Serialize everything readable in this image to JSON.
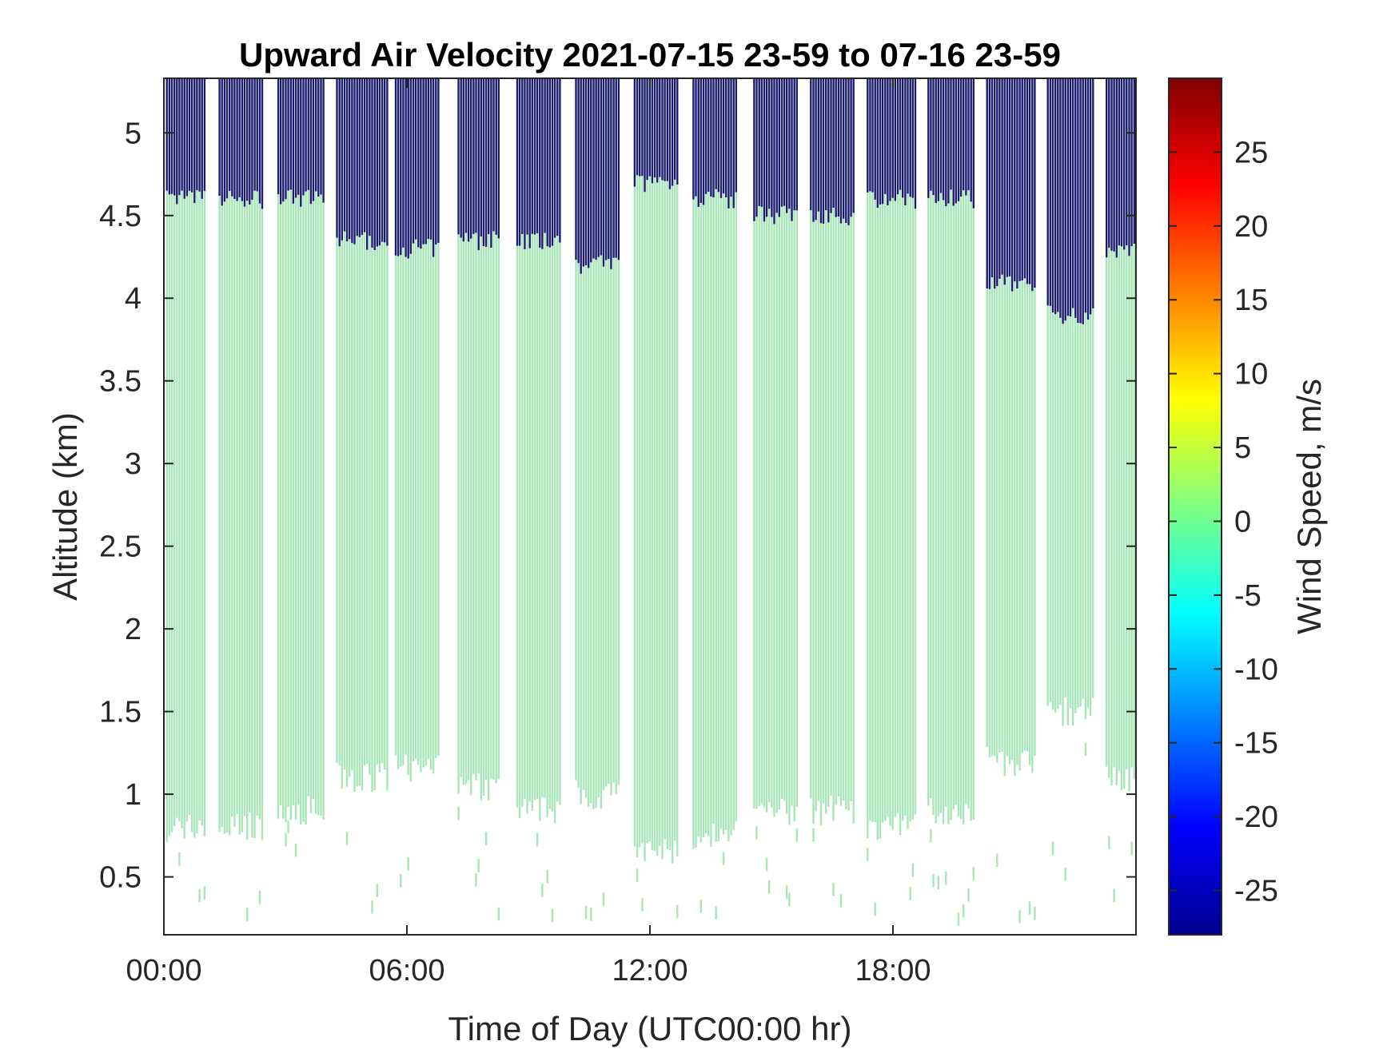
{
  "chart_data": {
    "type": "heatmap",
    "title": "Upward Air Velocity 2021-07-15 23-59 to 07-16 23-59",
    "xlabel": "Time of Day (UTC00:00 hr)",
    "ylabel": "Altitude (km)",
    "colorbar_label": "Wind Speed, m/s",
    "x_unit": "hours",
    "xlim": [
      0,
      24
    ],
    "ylim": [
      0.15,
      5.33
    ],
    "clim": [
      -28,
      30
    ],
    "x_ticks": [
      {
        "value": 0,
        "label": "00:00"
      },
      {
        "value": 6,
        "label": "06:00"
      },
      {
        "value": 12,
        "label": "12:00"
      },
      {
        "value": 18,
        "label": "18:00"
      }
    ],
    "y_ticks": [
      {
        "value": 0.5,
        "label": "0.5"
      },
      {
        "value": 1,
        "label": "1"
      },
      {
        "value": 1.5,
        "label": "1.5"
      },
      {
        "value": 2,
        "label": "2"
      },
      {
        "value": 2.5,
        "label": "2.5"
      },
      {
        "value": 3,
        "label": "3"
      },
      {
        "value": 3.5,
        "label": "3.5"
      },
      {
        "value": 4,
        "label": "4"
      },
      {
        "value": 4.5,
        "label": "4.5"
      },
      {
        "value": 5,
        "label": "5"
      }
    ],
    "c_ticks": [
      {
        "value": -25,
        "label": "-25"
      },
      {
        "value": -20,
        "label": "-20"
      },
      {
        "value": -15,
        "label": "-15"
      },
      {
        "value": -10,
        "label": "-10"
      },
      {
        "value": -5,
        "label": "-5"
      },
      {
        "value": 0,
        "label": "0"
      },
      {
        "value": 5,
        "label": "5"
      },
      {
        "value": 10,
        "label": "10"
      },
      {
        "value": 15,
        "label": "15"
      },
      {
        "value": 20,
        "label": "20"
      },
      {
        "value": 25,
        "label": "25"
      }
    ],
    "colormap": "jet",
    "data_colors": {
      "near_zero": "#a8e6b8",
      "missing_high": "#1c1c6e"
    },
    "measurement_blocks": [
      {
        "start": 0.05,
        "end": 1.0,
        "valid_bottom": 0.8,
        "valid_top": 4.6
      },
      {
        "start": 1.35,
        "end": 2.45,
        "valid_bottom": 0.8,
        "valid_top": 4.6
      },
      {
        "start": 2.8,
        "end": 3.95,
        "valid_bottom": 0.9,
        "valid_top": 4.6
      },
      {
        "start": 4.25,
        "end": 5.5,
        "valid_bottom": 1.1,
        "valid_top": 4.35
      },
      {
        "start": 5.7,
        "end": 6.8,
        "valid_bottom": 1.15,
        "valid_top": 4.3
      },
      {
        "start": 7.25,
        "end": 8.3,
        "valid_bottom": 1.05,
        "valid_top": 4.35
      },
      {
        "start": 8.7,
        "end": 9.8,
        "valid_bottom": 0.9,
        "valid_top": 4.35
      },
      {
        "start": 10.15,
        "end": 11.25,
        "valid_bottom": 1.0,
        "valid_top": 4.2
      },
      {
        "start": 11.6,
        "end": 12.7,
        "valid_bottom": 0.65,
        "valid_top": 4.7
      },
      {
        "start": 13.05,
        "end": 14.15,
        "valid_bottom": 0.75,
        "valid_top": 4.6
      },
      {
        "start": 14.55,
        "end": 15.65,
        "valid_bottom": 0.9,
        "valid_top": 4.5
      },
      {
        "start": 15.95,
        "end": 17.05,
        "valid_bottom": 0.9,
        "valid_top": 4.5
      },
      {
        "start": 17.35,
        "end": 18.55,
        "valid_bottom": 0.8,
        "valid_top": 4.6
      },
      {
        "start": 18.85,
        "end": 20.0,
        "valid_bottom": 0.9,
        "valid_top": 4.6
      },
      {
        "start": 20.3,
        "end": 21.5,
        "valid_bottom": 1.2,
        "valid_top": 4.1
      },
      {
        "start": 21.8,
        "end": 22.95,
        "valid_bottom": 1.5,
        "valid_top": 3.9
      },
      {
        "start": 23.25,
        "end": 24.0,
        "valid_bottom": 1.1,
        "valid_top": 4.3
      }
    ]
  }
}
